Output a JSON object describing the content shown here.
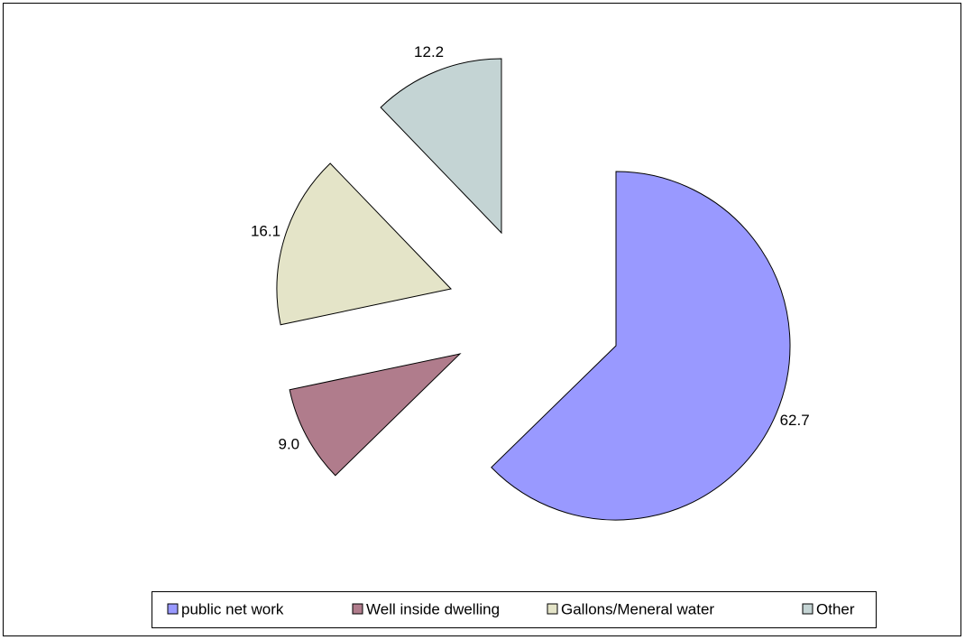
{
  "chart_data": {
    "type": "pie",
    "categories": [
      "public net work",
      "Well inside dwelling",
      "Gallons/Meneral water",
      "Other"
    ],
    "values": [
      62.7,
      9.0,
      16.1,
      12.2
    ],
    "value_labels": [
      "62.7",
      "9.0",
      "16.1",
      "12.2"
    ],
    "colors": [
      "#9999ff",
      "#b07c8c",
      "#e4e4c8",
      "#c4d4d4"
    ],
    "legend": "bottom"
  }
}
